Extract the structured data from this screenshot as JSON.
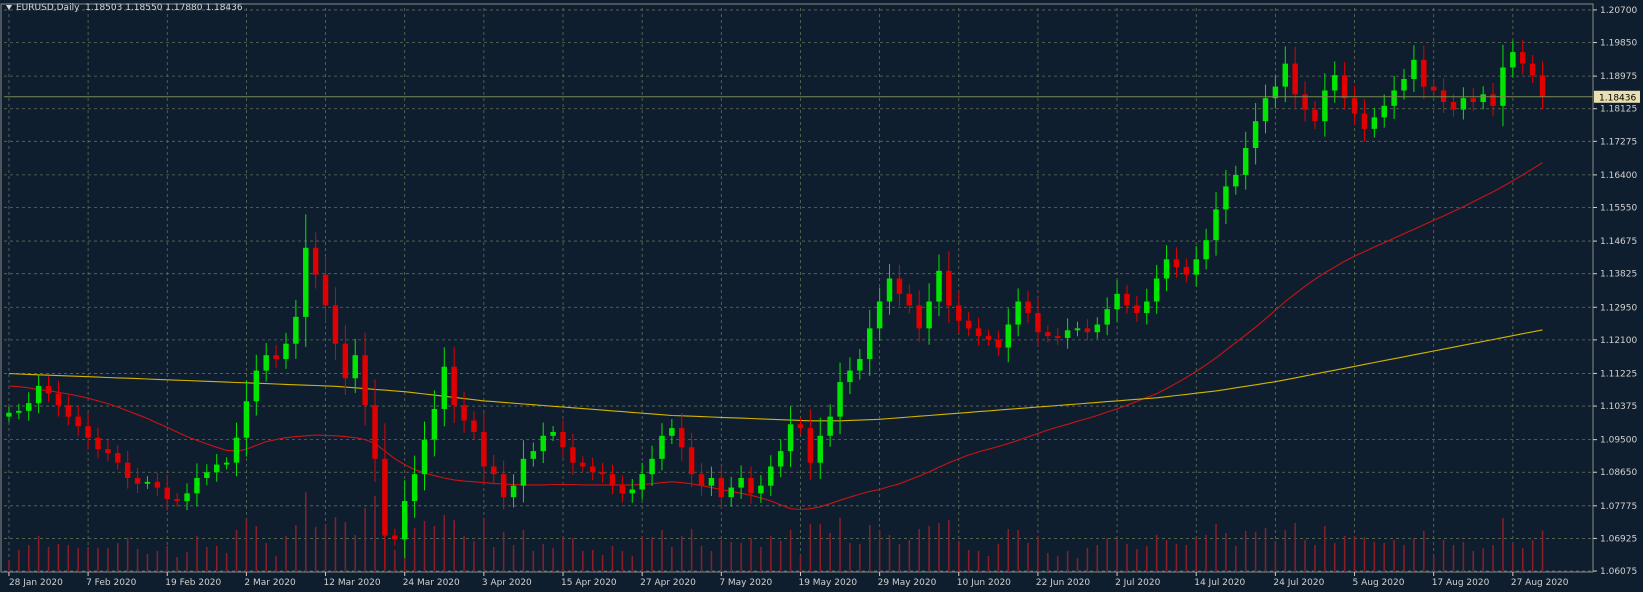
{
  "header": {
    "symbol": "EURUSD,Daily",
    "ohlc": "1.18503 1.18550 1.17880 1.18436"
  },
  "colors": {
    "background": "#0f1e2e",
    "grid": "#5f6f5a",
    "bull": "#00e600",
    "bear": "#e00000",
    "ma_fast": "#c81414",
    "ma_slow": "#d2b400",
    "volume": "#8a1f2a",
    "price_line": "#7a8a50",
    "axis_text": "#d0d0d0",
    "price_tag_bg": "#e8e0b0"
  },
  "chart_data": {
    "type": "candlestick",
    "title": "",
    "symbol": "EURUSD",
    "timeframe": "Daily",
    "current_price": "1.18436",
    "ylim": [
      1.0605,
      1.2075
    ],
    "y_ticks": [
      "1.20700",
      "1.19850",
      "1.18975",
      "1.18125",
      "1.17275",
      "1.16400",
      "1.15550",
      "1.14675",
      "1.13825",
      "1.12950",
      "1.12100",
      "1.11225",
      "1.10375",
      "1.09500",
      "1.08650",
      "1.07775",
      "1.06925",
      "1.06075"
    ],
    "x_ticks": [
      "28 Jan 2020",
      "7 Feb 2020",
      "19 Feb 2020",
      "2 Mar 2020",
      "12 Mar 2020",
      "24 Mar 2020",
      "3 Apr 2020",
      "15 Apr 2020",
      "27 Apr 2020",
      "7 May 2020",
      "19 May 2020",
      "29 May 2020",
      "10 Jun 2020",
      "22 Jun 2020",
      "2 Jul 2020",
      "14 Jul 2020",
      "24 Jul 2020",
      "5 Aug 2020",
      "17 Aug 2020",
      "27 Aug 2020"
    ],
    "x_tick_index": [
      0,
      8,
      16,
      24,
      32,
      40,
      48,
      56,
      64,
      72,
      80,
      88,
      96,
      104,
      112,
      120,
      128,
      136,
      144,
      152
    ],
    "grid": true,
    "series": [
      {
        "type": "candles",
        "closes": [
          1.102,
          1.1025,
          1.1045,
          1.109,
          1.107,
          1.104,
          1.101,
          1.0985,
          1.0955,
          1.0925,
          1.0915,
          1.089,
          1.085,
          1.0835,
          1.084,
          1.0825,
          1.0795,
          1.079,
          1.081,
          1.085,
          1.0865,
          1.0885,
          1.089,
          1.0955,
          1.105,
          1.113,
          1.117,
          1.116,
          1.12,
          1.127,
          1.145,
          1.138,
          1.13,
          1.12,
          1.111,
          1.117,
          1.104,
          1.09,
          1.07,
          1.069,
          1.079,
          1.086,
          1.095,
          1.103,
          1.114,
          1.104,
          1.1,
          1.097,
          1.088,
          1.086,
          1.08,
          1.083,
          1.09,
          1.092,
          1.096,
          1.097,
          1.093,
          1.089,
          1.088,
          1.0865,
          1.086,
          1.083,
          1.081,
          1.082,
          1.086,
          1.09,
          1.096,
          1.098,
          1.093,
          1.086,
          1.083,
          1.085,
          1.08,
          1.0825,
          1.085,
          1.081,
          1.083,
          1.088,
          1.092,
          1.099,
          1.098,
          1.089,
          1.096,
          1.101,
          1.11,
          1.113,
          1.116,
          1.124,
          1.131,
          1.137,
          1.133,
          1.13,
          1.124,
          1.131,
          1.139,
          1.13,
          1.126,
          1.124,
          1.122,
          1.121,
          1.119,
          1.125,
          1.131,
          1.128,
          1.123,
          1.122,
          1.1215,
          1.1235,
          1.124,
          1.123,
          1.125,
          1.129,
          1.133,
          1.13,
          1.128,
          1.131,
          1.137,
          1.142,
          1.14,
          1.138,
          1.142,
          1.147,
          1.155,
          1.161,
          1.164,
          1.171,
          1.178,
          1.184,
          1.187,
          1.193,
          1.185,
          1.181,
          1.178,
          1.186,
          1.19,
          1.184,
          1.18,
          1.176,
          1.179,
          1.182,
          1.186,
          1.189,
          1.194,
          1.187,
          1.186,
          1.183,
          1.181,
          1.184,
          1.183,
          1.185,
          1.182,
          1.192,
          1.196,
          1.193,
          1.19,
          1.1844
        ]
      },
      {
        "type": "line",
        "name": "",
        "color": "ma_fast",
        "values": [
          1.109,
          1.1088,
          1.1085,
          1.108,
          1.1078,
          1.1073,
          1.1069,
          1.1064,
          1.1058,
          1.1051,
          1.1044,
          1.1035,
          1.1025,
          1.1015,
          1.1005,
          1.0993,
          1.0982,
          1.097,
          1.0958,
          1.0948,
          1.0939,
          1.093,
          1.0922,
          1.092,
          1.0925,
          1.0935,
          1.0945,
          1.095,
          1.0955,
          1.0958,
          1.096,
          1.0962,
          1.0961,
          1.096,
          1.0958,
          1.0955,
          1.095,
          1.094,
          1.092,
          1.09,
          1.0885,
          1.0872,
          1.0863,
          1.0856,
          1.085,
          1.0845,
          1.0842,
          1.084,
          1.0838,
          1.0836,
          1.0834,
          1.0833,
          1.0832,
          1.0832,
          1.0832,
          1.0833,
          1.0833,
          1.0833,
          1.0832,
          1.0832,
          1.0832,
          1.0832,
          1.0832,
          1.0832,
          1.0833,
          1.0835,
          1.0838,
          1.084,
          1.0838,
          1.0835,
          1.083,
          1.0825,
          1.082,
          1.0815,
          1.081,
          1.0805,
          1.0798,
          1.079,
          1.078,
          1.077,
          1.0768,
          1.077,
          1.0775,
          1.0783,
          1.0792,
          1.08,
          1.0808,
          1.0815,
          1.082,
          1.0828,
          1.0835,
          1.0845,
          1.0855,
          1.0866,
          1.0878,
          1.089,
          1.09,
          1.091,
          1.0918,
          1.0925,
          1.0932,
          1.094,
          1.0948,
          1.0957,
          1.0966,
          1.0975,
          1.0983,
          1.099,
          1.0998,
          1.1005,
          1.1013,
          1.1022,
          1.103,
          1.104,
          1.105,
          1.106,
          1.107,
          1.1083,
          1.1097,
          1.1112,
          1.1128,
          1.1145,
          1.1163,
          1.1183,
          1.1203,
          1.1223,
          1.1243,
          1.1265,
          1.1287,
          1.131,
          1.133,
          1.135,
          1.1368,
          1.1385,
          1.14,
          1.1415,
          1.1428,
          1.144,
          1.1452,
          1.1463,
          1.1475,
          1.1487,
          1.1498,
          1.151,
          1.1522,
          1.1533,
          1.1545,
          1.1557,
          1.157,
          1.1583,
          1.1596,
          1.161,
          1.1625,
          1.164,
          1.1656,
          1.1672
        ]
      },
      {
        "type": "line",
        "name": "",
        "color": "ma_slow",
        "values": [
          1.1122,
          1.1121,
          1.112,
          1.1119,
          1.1118,
          1.1117,
          1.1116,
          1.1115,
          1.1114,
          1.1113,
          1.1112,
          1.1111,
          1.111,
          1.1109,
          1.1108,
          1.1107,
          1.1106,
          1.1105,
          1.1104,
          1.1103,
          1.1102,
          1.1101,
          1.11,
          1.1099,
          1.1098,
          1.1097,
          1.1096,
          1.1095,
          1.1094,
          1.1093,
          1.1092,
          1.1091,
          1.109,
          1.1089,
          1.1087,
          1.1085,
          1.1083,
          1.1081,
          1.1079,
          1.1077,
          1.1075,
          1.1072,
          1.1069,
          1.1066,
          1.1063,
          1.106,
          1.1057,
          1.1054,
          1.1051,
          1.1049,
          1.1047,
          1.1045,
          1.1043,
          1.1041,
          1.1039,
          1.1037,
          1.1035,
          1.1033,
          1.1031,
          1.1029,
          1.1027,
          1.1025,
          1.1023,
          1.1021,
          1.1019,
          1.1017,
          1.1015,
          1.1013,
          1.1012,
          1.1011,
          1.101,
          1.1009,
          1.1008,
          1.1007,
          1.1006,
          1.1005,
          1.1004,
          1.1003,
          1.1002,
          1.1001,
          1.1,
          1.0999,
          1.0999,
          1.0999,
          1.0999,
          1.1,
          1.1001,
          1.1002,
          1.1003,
          1.1005,
          1.1007,
          1.1009,
          1.1011,
          1.1013,
          1.1015,
          1.1017,
          1.1019,
          1.1021,
          1.1023,
          1.1025,
          1.1027,
          1.1029,
          1.1031,
          1.1033,
          1.1035,
          1.1037,
          1.1039,
          1.1041,
          1.1043,
          1.1045,
          1.1047,
          1.1049,
          1.1051,
          1.1053,
          1.1055,
          1.1057,
          1.1059,
          1.1062,
          1.1065,
          1.1068,
          1.1071,
          1.1074,
          1.1077,
          1.1081,
          1.1085,
          1.1089,
          1.1093,
          1.1097,
          1.1101,
          1.1106,
          1.1111,
          1.1116,
          1.1121,
          1.1126,
          1.1131,
          1.1136,
          1.1141,
          1.1146,
          1.1151,
          1.1156,
          1.1161,
          1.1166,
          1.1171,
          1.1176,
          1.1181,
          1.1186,
          1.1191,
          1.1196,
          1.1201,
          1.1206,
          1.1211,
          1.1216,
          1.1221,
          1.1226,
          1.1231,
          1.1236
        ]
      }
    ]
  }
}
